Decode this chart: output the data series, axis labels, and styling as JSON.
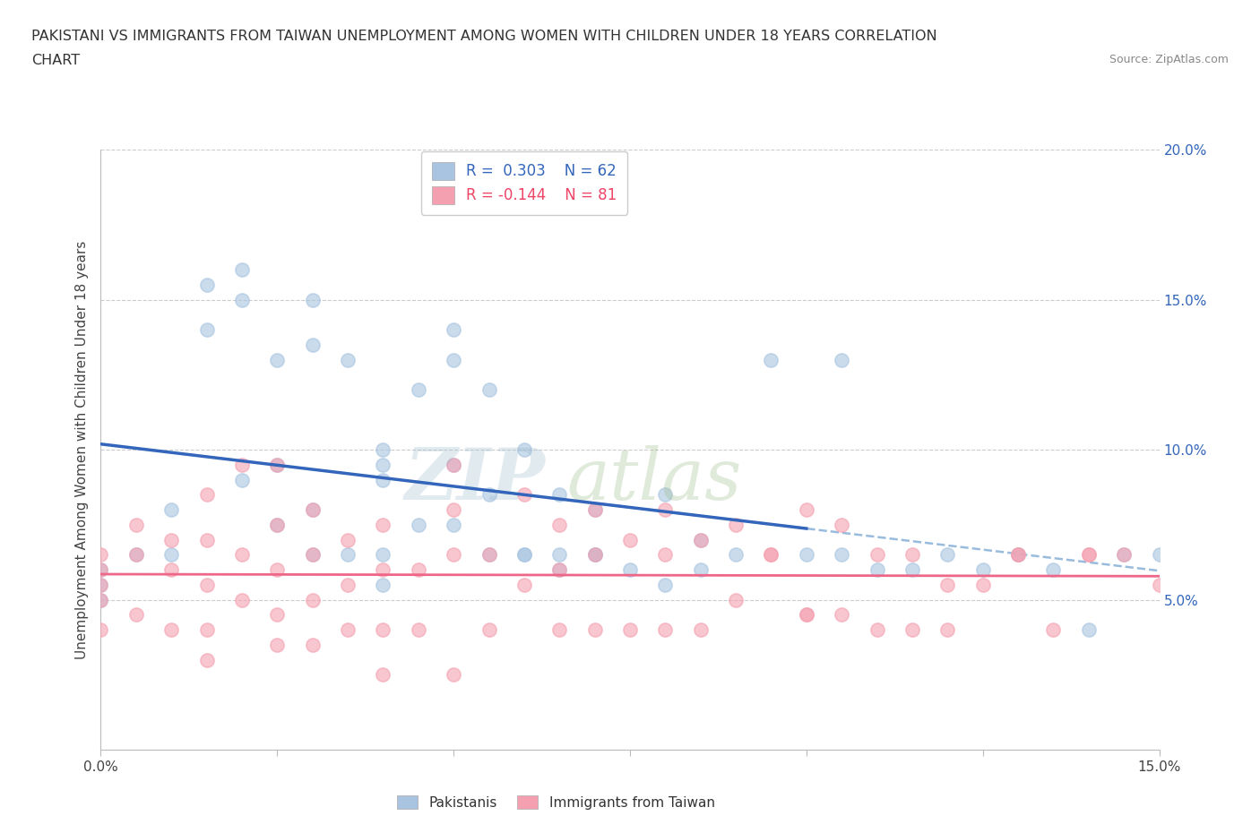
{
  "title_line1": "PAKISTANI VS IMMIGRANTS FROM TAIWAN UNEMPLOYMENT AMONG WOMEN WITH CHILDREN UNDER 18 YEARS CORRELATION",
  "title_line2": "CHART",
  "source": "Source: ZipAtlas.com",
  "ylabel": "Unemployment Among Women with Children Under 18 years",
  "xlim": [
    0.0,
    0.15
  ],
  "ylim": [
    0.0,
    0.2
  ],
  "xticks": [
    0.0,
    0.025,
    0.05,
    0.075,
    0.1,
    0.125,
    0.15
  ],
  "yticks": [
    0.0,
    0.05,
    0.1,
    0.15,
    0.2
  ],
  "xtick_labels": [
    "0.0%",
    "",
    "",
    "",
    "",
    "",
    "15.0%"
  ],
  "ytick_labels": [
    "",
    "5.0%",
    "10.0%",
    "15.0%",
    "20.0%"
  ],
  "pakistani_color": "#A8C4E0",
  "taiwan_color": "#F4A0B0",
  "pakistani_line_color": "#3366BB",
  "taiwan_line_color": "#EE6688",
  "dash_color": "#99BBDD",
  "pakistani_R": 0.303,
  "pakistani_N": 62,
  "taiwan_R": -0.144,
  "taiwan_N": 81,
  "background_color": "#FFFFFF",
  "grid_color": "#CCCCCC",
  "legend_labels": [
    "Pakistanis",
    "Immigrants from Taiwan"
  ],
  "pakistani_scatter_x": [
    0.0,
    0.0,
    0.0,
    0.005,
    0.01,
    0.01,
    0.015,
    0.015,
    0.02,
    0.02,
    0.02,
    0.025,
    0.025,
    0.025,
    0.03,
    0.03,
    0.03,
    0.03,
    0.035,
    0.035,
    0.04,
    0.04,
    0.04,
    0.04,
    0.04,
    0.045,
    0.045,
    0.05,
    0.05,
    0.05,
    0.05,
    0.055,
    0.055,
    0.06,
    0.06,
    0.065,
    0.065,
    0.07,
    0.07,
    0.075,
    0.08,
    0.08,
    0.085,
    0.085,
    0.09,
    0.095,
    0.1,
    0.105,
    0.105,
    0.11,
    0.115,
    0.12,
    0.125,
    0.13,
    0.135,
    0.14,
    0.145,
    0.15,
    0.055,
    0.06,
    0.065,
    0.07
  ],
  "pakistani_scatter_y": [
    0.06,
    0.055,
    0.05,
    0.065,
    0.08,
    0.065,
    0.155,
    0.14,
    0.16,
    0.15,
    0.09,
    0.13,
    0.095,
    0.075,
    0.15,
    0.135,
    0.08,
    0.065,
    0.13,
    0.065,
    0.1,
    0.095,
    0.09,
    0.065,
    0.055,
    0.12,
    0.075,
    0.14,
    0.13,
    0.095,
    0.075,
    0.085,
    0.065,
    0.1,
    0.065,
    0.085,
    0.06,
    0.08,
    0.065,
    0.06,
    0.085,
    0.055,
    0.07,
    0.06,
    0.065,
    0.13,
    0.065,
    0.13,
    0.065,
    0.06,
    0.06,
    0.065,
    0.06,
    0.065,
    0.06,
    0.04,
    0.065,
    0.065,
    0.12,
    0.065,
    0.065,
    0.065
  ],
  "taiwan_scatter_x": [
    0.0,
    0.0,
    0.0,
    0.0,
    0.0,
    0.005,
    0.005,
    0.005,
    0.01,
    0.01,
    0.01,
    0.015,
    0.015,
    0.015,
    0.015,
    0.015,
    0.02,
    0.02,
    0.02,
    0.025,
    0.025,
    0.025,
    0.025,
    0.025,
    0.03,
    0.03,
    0.03,
    0.03,
    0.035,
    0.035,
    0.035,
    0.04,
    0.04,
    0.04,
    0.04,
    0.045,
    0.045,
    0.05,
    0.05,
    0.05,
    0.05,
    0.055,
    0.055,
    0.06,
    0.06,
    0.065,
    0.065,
    0.065,
    0.07,
    0.07,
    0.07,
    0.075,
    0.075,
    0.08,
    0.08,
    0.08,
    0.085,
    0.085,
    0.09,
    0.09,
    0.095,
    0.1,
    0.1,
    0.105,
    0.11,
    0.115,
    0.12,
    0.125,
    0.13,
    0.135,
    0.14,
    0.145,
    0.15,
    0.095,
    0.1,
    0.105,
    0.11,
    0.115,
    0.12,
    0.13,
    0.14
  ],
  "taiwan_scatter_y": [
    0.065,
    0.06,
    0.055,
    0.05,
    0.04,
    0.075,
    0.065,
    0.045,
    0.07,
    0.06,
    0.04,
    0.085,
    0.07,
    0.055,
    0.04,
    0.03,
    0.095,
    0.065,
    0.05,
    0.095,
    0.075,
    0.06,
    0.045,
    0.035,
    0.08,
    0.065,
    0.05,
    0.035,
    0.07,
    0.055,
    0.04,
    0.075,
    0.06,
    0.04,
    0.025,
    0.06,
    0.04,
    0.095,
    0.08,
    0.065,
    0.025,
    0.065,
    0.04,
    0.085,
    0.055,
    0.075,
    0.06,
    0.04,
    0.08,
    0.065,
    0.04,
    0.07,
    0.04,
    0.08,
    0.065,
    0.04,
    0.07,
    0.04,
    0.075,
    0.05,
    0.065,
    0.08,
    0.045,
    0.075,
    0.065,
    0.065,
    0.055,
    0.055,
    0.065,
    0.04,
    0.065,
    0.065,
    0.055,
    0.065,
    0.045,
    0.045,
    0.04,
    0.04,
    0.04,
    0.065,
    0.065
  ]
}
